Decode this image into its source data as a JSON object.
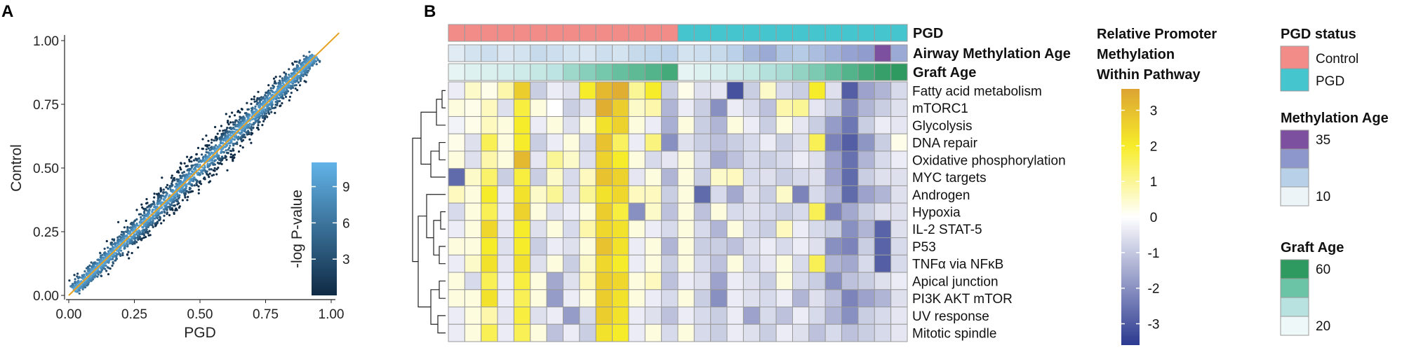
{
  "panel_a": {
    "letter": "A",
    "chart_data": {
      "type": "scatter",
      "xlabel": "PGD",
      "ylabel": "Control",
      "xlim": [
        0,
        1
      ],
      "ylim": [
        0,
        1
      ],
      "x_ticks": [
        "0.00",
        "0.25",
        "0.50",
        "0.75",
        "1.00"
      ],
      "y_ticks": [
        "0.00",
        "0.25",
        "0.50",
        "0.75",
        "1.00"
      ],
      "reference_line": {
        "slope": 1,
        "intercept": 0,
        "color": "#e8a020"
      },
      "point_spread_sd": 0.028,
      "point_count_shown": 2600,
      "colorbar": {
        "title": "-log P-value",
        "ticks": [
          "3",
          "6",
          "9"
        ],
        "tick_values": [
          3,
          6,
          9
        ],
        "range": [
          0,
          11
        ],
        "low_color": "#0f2a44",
        "high_color": "#62b3e8",
        "placement": "bottom-right"
      }
    }
  },
  "panel_b": {
    "letter": "B",
    "chart_data": {
      "type": "heatmap",
      "annotations": [
        {
          "label": "PGD",
          "values": [
            "Control",
            "Control",
            "Control",
            "Control",
            "Control",
            "Control",
            "Control",
            "Control",
            "Control",
            "Control",
            "Control",
            "Control",
            "Control",
            "Control",
            "PGD",
            "PGD",
            "PGD",
            "PGD",
            "PGD",
            "PGD",
            "PGD",
            "PGD",
            "PGD",
            "PGD",
            "PGD",
            "PGD",
            "PGD",
            "PGD"
          ]
        },
        {
          "label": "Airway Methylation Age",
          "values": [
            12,
            14,
            15,
            13,
            14,
            16,
            15,
            14,
            13,
            15,
            14,
            16,
            17,
            18,
            14,
            15,
            16,
            18,
            22,
            24,
            20,
            19,
            21,
            23,
            25,
            26,
            35,
            24
          ]
        },
        {
          "label": "Graft Age",
          "values": [
            22,
            24,
            25,
            26,
            28,
            30,
            32,
            38,
            42,
            45,
            48,
            50,
            52,
            55,
            22,
            24,
            26,
            28,
            30,
            34,
            36,
            40,
            44,
            48,
            52,
            55,
            58,
            60
          ]
        }
      ],
      "rows": [
        "Fatty acid metabolism",
        "mTORC1",
        "Glycolysis",
        "DNA repair",
        "Oxidative phosphorylation",
        "MYC targets",
        "Androgen",
        "Hypoxia",
        "IL-2 STAT-5",
        "P53",
        "TNFα via NFκB",
        "Apical junction",
        "PI3K AKT mTOR",
        "UV response",
        "Mitotic spindle"
      ],
      "values": [
        [
          -0.3,
          0.5,
          0.2,
          0.8,
          2.6,
          -0.8,
          -0.3,
          -0.5,
          2.0,
          3.0,
          3.2,
          1.0,
          2.0,
          -0.8,
          0.2,
          -0.5,
          -0.4,
          -2.8,
          -0.8,
          0.5,
          -0.6,
          -0.8,
          2.0,
          -0.5,
          -2.6,
          -1.5,
          -1.2,
          -0.6
        ],
        [
          0.3,
          0.2,
          0.6,
          -0.5,
          1.8,
          0.3,
          0.0,
          -0.8,
          -0.5,
          3.2,
          2.6,
          0.5,
          0.8,
          -1.2,
          -0.3,
          -0.8,
          -1.8,
          -0.3,
          -0.6,
          -1.0,
          0.8,
          1.0,
          -0.4,
          -0.8,
          -1.9,
          -1.2,
          -0.8,
          -0.5
        ],
        [
          -0.2,
          0.2,
          0.6,
          0.3,
          2.0,
          -0.3,
          0.3,
          -0.5,
          0.3,
          2.2,
          2.5,
          0.3,
          -0.3,
          -1.3,
          0.3,
          -0.8,
          -1.2,
          0.3,
          -0.3,
          -0.8,
          0.3,
          -0.4,
          -0.8,
          -1.6,
          -2.2,
          -0.8,
          -0.3,
          -0.4
        ],
        [
          0.2,
          -0.5,
          1.6,
          0.3,
          2.0,
          -0.8,
          -0.3,
          0.3,
          -0.6,
          2.8,
          1.5,
          -0.3,
          1.2,
          -1.8,
          -0.5,
          -0.8,
          -1.0,
          -0.8,
          -0.6,
          -0.3,
          -0.8,
          -0.5,
          1.6,
          -2.0,
          -2.6,
          -1.7,
          -0.8,
          0.2
        ],
        [
          0.3,
          -0.5,
          0.8,
          0.3,
          3.0,
          -0.4,
          1.0,
          0.5,
          -0.5,
          2.5,
          2.0,
          0.3,
          -0.6,
          -0.4,
          0.3,
          -0.6,
          -1.4,
          -1.0,
          -0.6,
          -0.8,
          -0.6,
          -0.3,
          -0.5,
          -1.5,
          -2.3,
          -1.2,
          -0.6,
          -0.3
        ],
        [
          -2.4,
          0.5,
          1.4,
          -0.8,
          1.8,
          -0.8,
          0.5,
          -0.6,
          0.6,
          2.8,
          2.5,
          -0.4,
          0.3,
          -1.2,
          0.3,
          -0.8,
          0.5,
          0.6,
          -0.6,
          -0.5,
          -0.8,
          -0.6,
          -0.5,
          -1.5,
          -2.4,
          -0.8,
          -0.5,
          -0.5
        ],
        [
          0.6,
          0.3,
          2.0,
          -0.3,
          2.2,
          0.5,
          1.0,
          -0.5,
          1.0,
          2.2,
          2.4,
          0.6,
          0.6,
          -0.8,
          0.3,
          -2.4,
          -0.6,
          -1.4,
          -0.5,
          -0.8,
          0.5,
          -2.0,
          -0.6,
          -1.2,
          -2.4,
          -1.5,
          -1.2,
          -0.5
        ],
        [
          -0.6,
          0.3,
          1.6,
          -0.3,
          2.5,
          0.3,
          -0.5,
          -0.3,
          0.3,
          2.6,
          1.8,
          -1.8,
          0.5,
          -1.0,
          0.3,
          -1.0,
          0.3,
          -0.6,
          -0.5,
          -0.6,
          -0.8,
          -0.6,
          1.6,
          -2.0,
          -1.4,
          -0.8,
          -0.5,
          -0.5
        ],
        [
          -0.3,
          0.3,
          2.4,
          -0.4,
          2.0,
          -0.5,
          0.3,
          -0.6,
          0.8,
          2.4,
          2.2,
          0.3,
          -0.3,
          -0.6,
          0.3,
          -0.6,
          -1.2,
          0.3,
          -0.6,
          -0.8,
          0.6,
          -0.3,
          -0.6,
          -0.8,
          -1.8,
          -1.2,
          -2.5,
          -0.5
        ],
        [
          0.3,
          0.3,
          2.0,
          -0.5,
          2.0,
          -0.8,
          -0.3,
          -0.5,
          0.3,
          2.8,
          2.2,
          -0.3,
          0.3,
          -1.2,
          0.3,
          -0.8,
          -0.8,
          -1.0,
          -0.5,
          -0.3,
          -0.6,
          -0.3,
          -0.5,
          -1.8,
          -2.0,
          -0.8,
          -2.5,
          -0.6
        ],
        [
          -0.3,
          0.5,
          2.2,
          -0.4,
          2.2,
          -0.5,
          0.3,
          -0.8,
          0.5,
          2.4,
          2.0,
          -0.3,
          0.3,
          -0.8,
          0.3,
          -0.6,
          -1.0,
          0.3,
          -0.6,
          -0.4,
          0.3,
          -0.6,
          1.6,
          -1.2,
          -1.4,
          -0.6,
          -2.6,
          -0.6
        ],
        [
          0.3,
          -0.6,
          1.6,
          -0.3,
          1.8,
          0.3,
          -1.4,
          -0.5,
          0.6,
          2.6,
          2.4,
          0.3,
          0.6,
          -1.0,
          -0.3,
          -0.5,
          -1.5,
          -0.3,
          -0.5,
          -0.8,
          0.3,
          -0.6,
          -0.8,
          -1.8,
          -1.0,
          -0.8,
          -0.5,
          -0.3
        ],
        [
          0.3,
          0.3,
          2.2,
          -0.3,
          1.6,
          0.3,
          -1.6,
          -0.3,
          0.3,
          2.6,
          2.2,
          0.3,
          -0.3,
          -0.6,
          0.3,
          -0.8,
          -1.8,
          -0.3,
          -0.5,
          -0.6,
          -0.3,
          -1.2,
          -0.5,
          -1.0,
          -2.0,
          -1.5,
          -1.2,
          -0.5
        ],
        [
          -0.3,
          0.3,
          0.8,
          -0.4,
          1.8,
          -0.5,
          -0.3,
          -1.6,
          -0.6,
          2.6,
          2.2,
          -0.3,
          -0.5,
          -1.0,
          -0.3,
          -0.6,
          -0.8,
          -0.3,
          -1.5,
          -0.6,
          -1.0,
          -0.3,
          -0.6,
          -1.2,
          -1.8,
          -0.8,
          -0.6,
          -0.4
        ],
        [
          -0.3,
          0.3,
          1.6,
          -0.3,
          1.6,
          0.3,
          -1.0,
          -0.3,
          -0.8,
          2.2,
          2.0,
          -0.3,
          0.3,
          -0.6,
          0.3,
          -0.6,
          -0.8,
          -0.3,
          -0.5,
          -0.8,
          -0.3,
          -0.5,
          -1.0,
          -0.6,
          -1.0,
          -0.8,
          -0.6,
          -0.4
        ]
      ],
      "color_scale": {
        "title_lines": [
          "Relative Promoter",
          "Methylation",
          "Within Pathway"
        ],
        "ticks": [
          "3",
          "2",
          "1",
          "0",
          "-1",
          "-2",
          "-3"
        ],
        "tick_values": [
          3,
          2,
          1,
          0,
          -1,
          -2,
          -3
        ],
        "range": [
          -3.6,
          3.6
        ],
        "colors": {
          "low": "#2b3990",
          "mid": "#ffffff",
          "high_mid": "#f7ec2a",
          "high": "#dca432"
        }
      },
      "legends": [
        {
          "title": "PGD status",
          "type": "categorical",
          "items": [
            {
              "label": "Control",
              "color": "#f18c89"
            },
            {
              "label": "PGD",
              "color": "#45c6cf"
            }
          ]
        },
        {
          "title": "Methylation Age",
          "type": "continuous",
          "ticks": [
            "35",
            "10"
          ],
          "tick_values": [
            35,
            10
          ],
          "colors": [
            "#7d4f9f",
            "#8e97cc",
            "#b8d0e8",
            "#edf4f8"
          ]
        },
        {
          "title": "Graft Age",
          "type": "continuous",
          "ticks": [
            "60",
            "20"
          ],
          "tick_values": [
            60,
            20
          ],
          "colors": [
            "#2e9a5f",
            "#6cc4a6",
            "#b8e2df",
            "#eef8f8"
          ]
        }
      ]
    }
  }
}
